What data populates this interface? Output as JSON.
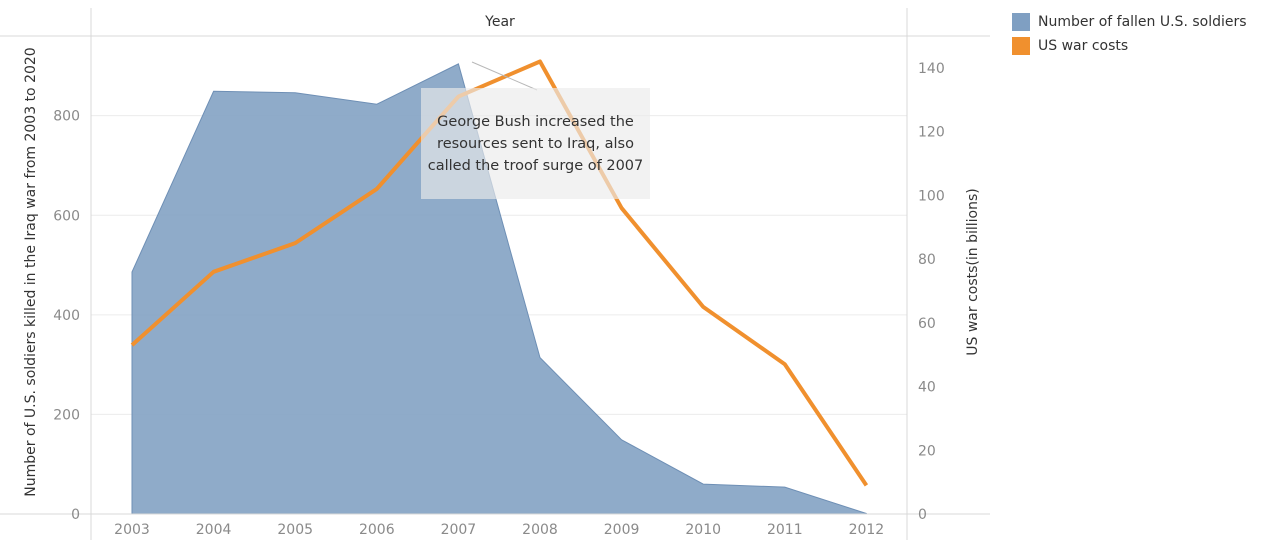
{
  "chart_data": {
    "type": "area",
    "title": "Year",
    "categories": [
      "2003",
      "2004",
      "2005",
      "2006",
      "2007",
      "2008",
      "2009",
      "2010",
      "2011",
      "2012"
    ],
    "series": [
      {
        "name": "Number of fallen U.S. soldiers",
        "type": "area",
        "axis": "left",
        "color": "#7f9fc2",
        "values": [
          486,
          849,
          846,
          823,
          904,
          314,
          149,
          60,
          54,
          1
        ]
      },
      {
        "name": "US war costs",
        "type": "line",
        "axis": "right",
        "color": "#f0902e",
        "values": [
          53,
          76,
          85,
          102,
          131,
          142,
          96,
          65,
          47,
          9
        ]
      }
    ],
    "left_axis": {
      "label": "Number of U.S. soldiers killed in the Iraq war from 2003 to 2020",
      "ticks": [
        0,
        200,
        400,
        600,
        800
      ],
      "range": [
        0,
        960
      ]
    },
    "right_axis": {
      "label": "US war costs(in billions)",
      "ticks": [
        0,
        20,
        40,
        60,
        80,
        100,
        120,
        140
      ],
      "range": [
        0,
        150
      ]
    },
    "grid": true,
    "legend_position": "top-right",
    "annotation": {
      "text": "George Bush increased the resources sent to Iraq, also called the troof surge of 2007",
      "anchor_category": "2007"
    }
  }
}
